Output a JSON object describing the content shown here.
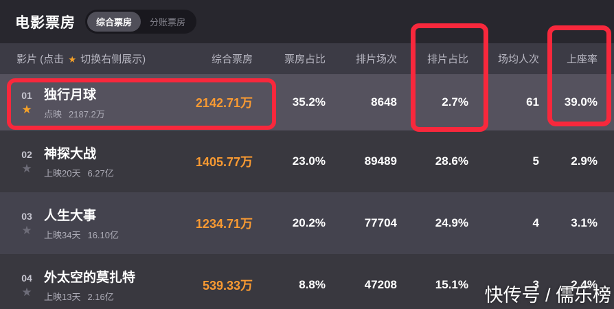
{
  "page": {
    "title": "电影票房"
  },
  "toggle": {
    "active_label": "综合票房",
    "inactive_label": "分账票房"
  },
  "table": {
    "movie_header": {
      "prefix": "影片 (点击",
      "star": "★",
      "suffix": "切换右侧展示)"
    },
    "columns": [
      "综合票房",
      "票房占比",
      "排片场次",
      "排片占比",
      "场均人次",
      "上座率"
    ],
    "rows": [
      {
        "rank": "01",
        "title": "独行月球",
        "status": "点映",
        "total": "2187.2万",
        "gross": "2142.71万",
        "gross_share": "35.2%",
        "screenings": "8648",
        "screening_share": "2.7%",
        "avg_attendance": "61",
        "occupancy": "39.0%"
      },
      {
        "rank": "02",
        "title": "神探大战",
        "status": "上映20天",
        "total": "6.27亿",
        "gross": "1405.77万",
        "gross_share": "23.0%",
        "screenings": "89489",
        "screening_share": "28.6%",
        "avg_attendance": "5",
        "occupancy": "2.9%"
      },
      {
        "rank": "03",
        "title": "人生大事",
        "status": "上映34天",
        "total": "16.10亿",
        "gross": "1234.71万",
        "gross_share": "20.2%",
        "screenings": "77704",
        "screening_share": "24.9%",
        "avg_attendance": "4",
        "occupancy": "3.1%"
      },
      {
        "rank": "04",
        "title": "外太空的莫扎特",
        "status": "上映13天",
        "total": "2.16亿",
        "gross": "539.33万",
        "gross_share": "8.8%",
        "screenings": "47208",
        "screening_share": "15.1%",
        "avg_attendance": "3",
        "occupancy": "2.4%"
      }
    ]
  },
  "watermark": "快传号 / 儒乐榜",
  "colors": {
    "accent_orange": "#f99a32",
    "star_orange": "#f5a128",
    "annotation_red": "#f8283c",
    "row_highlight": "#55525e",
    "row_dark": "#39383f",
    "row_alt": "#44434e",
    "header_row": "#3c3b45",
    "background": "#28272e"
  }
}
